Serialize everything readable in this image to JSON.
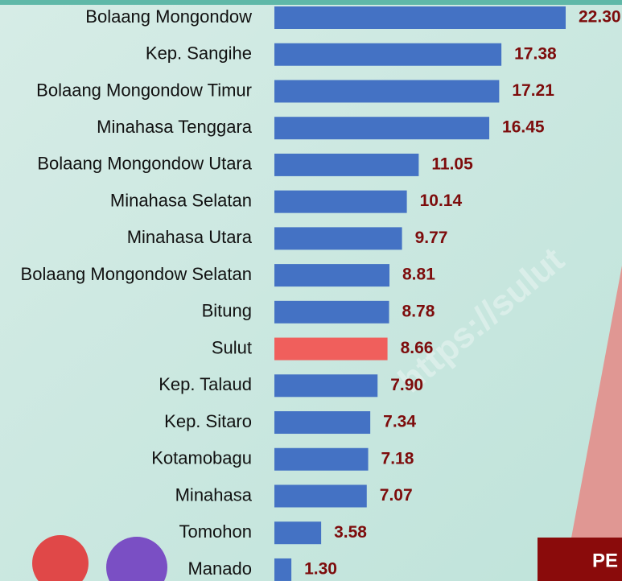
{
  "chart_data": {
    "type": "bar",
    "orientation": "horizontal",
    "categories": [
      "Bolaang Mongondow",
      "Kep. Sangihe",
      "Bolaang Mongondow Timur",
      "Minahasa Tenggara",
      "Bolaang Mongondow Utara",
      "Minahasa Selatan",
      "Minahasa Utara",
      "Bolaang Mongondow Selatan",
      "Bitung",
      "Sulut",
      "Kep. Talaud",
      "Kep. Sitaro",
      "Kotamobagu",
      "Minahasa",
      "Tomohon",
      "Manado"
    ],
    "values": [
      22.3,
      17.38,
      17.21,
      16.45,
      11.05,
      10.14,
      9.77,
      8.81,
      8.78,
      8.66,
      7.9,
      7.34,
      7.18,
      7.07,
      3.58,
      1.3
    ],
    "value_labels": [
      "22.30",
      "17.38",
      "17.21",
      "16.45",
      "11.05",
      "10.14",
      "9.77",
      "8.81",
      "8.78",
      "8.66",
      "7.90",
      "7.34",
      "7.18",
      "7.07",
      "3.58",
      "1.30"
    ],
    "colors": [
      "#4472c4",
      "#4472c4",
      "#4472c4",
      "#4472c4",
      "#4472c4",
      "#4472c4",
      "#4472c4",
      "#4472c4",
      "#4472c4",
      "#f05f5c",
      "#4472c4",
      "#4472c4",
      "#4472c4",
      "#4472c4",
      "#4472c4",
      "#4472c4"
    ]
  },
  "watermark": "https://sulut",
  "banner": "PE"
}
